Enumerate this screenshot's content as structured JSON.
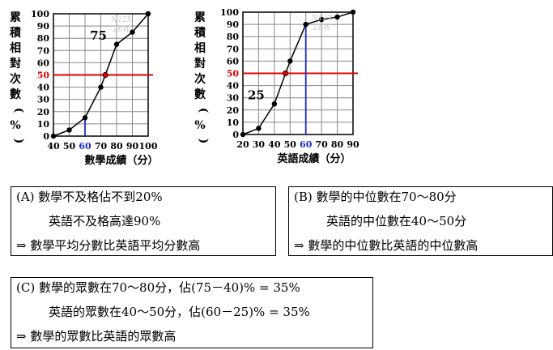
{
  "colors": {
    "line": "#000000",
    "median": "#e00000",
    "sixty": "#1a2bd0",
    "grid": "#888888",
    "watermark": "#c8c8c8"
  },
  "chart_data": [
    {
      "type": "line",
      "title": "",
      "xlabel": "數學成績（分）",
      "ylabel": "累積相對次數（%）",
      "xlim": [
        40,
        100
      ],
      "ylim": [
        0,
        100
      ],
      "xticks": [
        40,
        50,
        60,
        70,
        80,
        90,
        100
      ],
      "yticks": [
        0,
        10,
        20,
        30,
        40,
        50,
        60,
        70,
        80,
        90,
        100
      ],
      "x": [
        40,
        50,
        60,
        70,
        80,
        90,
        100
      ],
      "values": [
        0,
        5,
        15,
        40,
        75,
        85,
        100
      ],
      "median_line": {
        "y": 50,
        "x_at": 72.9
      },
      "highlight_x": 60,
      "annotation": "75",
      "annotation_at": {
        "x": 80,
        "y": 75
      },
      "grid": true
    },
    {
      "type": "line",
      "title": "",
      "xlabel": "英語成績（分）",
      "ylabel": "累積相對次數（%）",
      "xlim": [
        20,
        90
      ],
      "ylim": [
        0,
        100
      ],
      "xticks": [
        20,
        30,
        40,
        50,
        60,
        70,
        80,
        90
      ],
      "yticks": [
        0,
        10,
        20,
        30,
        40,
        50,
        60,
        70,
        80,
        90,
        100
      ],
      "x": [
        20,
        30,
        40,
        50,
        60,
        70,
        80,
        90
      ],
      "values": [
        0,
        5,
        25,
        60,
        90,
        94,
        96,
        100
      ],
      "median_line": {
        "y": 50,
        "x_at": 47.1
      },
      "highlight_x": 60,
      "annotation": "25",
      "annotation_at": {
        "x": 40,
        "y": 25
      },
      "grid": true
    }
  ],
  "watermarks": [
    "N12X",
    "Z6W"
  ],
  "options": [
    {
      "lines": [
        "(A)  數學不及格佔不到20%",
        "英語不及格高達90%",
        "⇒ 數學平均分數比英語平均分數高"
      ]
    },
    {
      "lines": [
        "(B)  數學的中位數在70～80分",
        "英語的中位數在40～50分",
        "⇒ 數學的中位數比英語的中位數高"
      ]
    },
    {
      "lines": [
        "(C)  數學的眾數在70～80分，佔(75－40)% = 35%",
        "英語的眾數在40～50分，佔(60－25)% = 35%",
        "⇒ 數學的眾數比英語的眾數高"
      ]
    }
  ]
}
